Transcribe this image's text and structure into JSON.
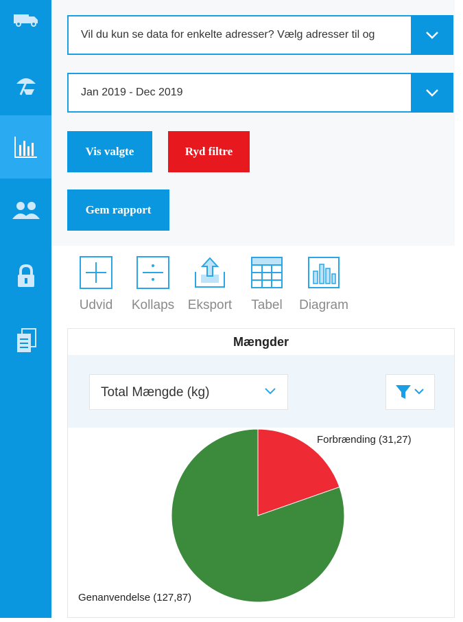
{
  "sidebar": {
    "items": [
      {
        "name": "truck-icon",
        "active": false
      },
      {
        "name": "beach-umbrella-icon",
        "active": false
      },
      {
        "name": "bar-chart-icon",
        "active": true
      },
      {
        "name": "users-icon",
        "active": false
      },
      {
        "name": "lock-icon",
        "active": false
      },
      {
        "name": "documents-icon",
        "active": false
      }
    ]
  },
  "filters": {
    "address_placeholder": "Vil du kun se data for enkelte adresser? Vælg adresser til og",
    "date_range": "Jan 2019 - Dec 2019",
    "show_selected_label": "Vis valgte",
    "clear_filters_label": "Ryd filtre",
    "save_report_label": "Gem rapport"
  },
  "toolbar": {
    "expand_label": "Udvid",
    "collapse_label": "Kollaps",
    "export_label": "Eksport",
    "table_label": "Tabel",
    "diagram_label": "Diagram"
  },
  "chart_card": {
    "title": "Mængder",
    "metric_selected": "Total Mængde (kg)"
  },
  "colors": {
    "primary": "#0a97e0",
    "danger": "#e8181f",
    "pie_red": "#ee2a35",
    "pie_green": "#3c8a3c"
  },
  "chart_data": {
    "type": "pie",
    "title": "",
    "slices": [
      {
        "label": "Forbrænding (31,27)",
        "value": 31.27,
        "color": "#ee2a35"
      },
      {
        "label": "Genanvendelse (127,87)",
        "value": 127.87,
        "color": "#3c8a3c"
      }
    ]
  }
}
